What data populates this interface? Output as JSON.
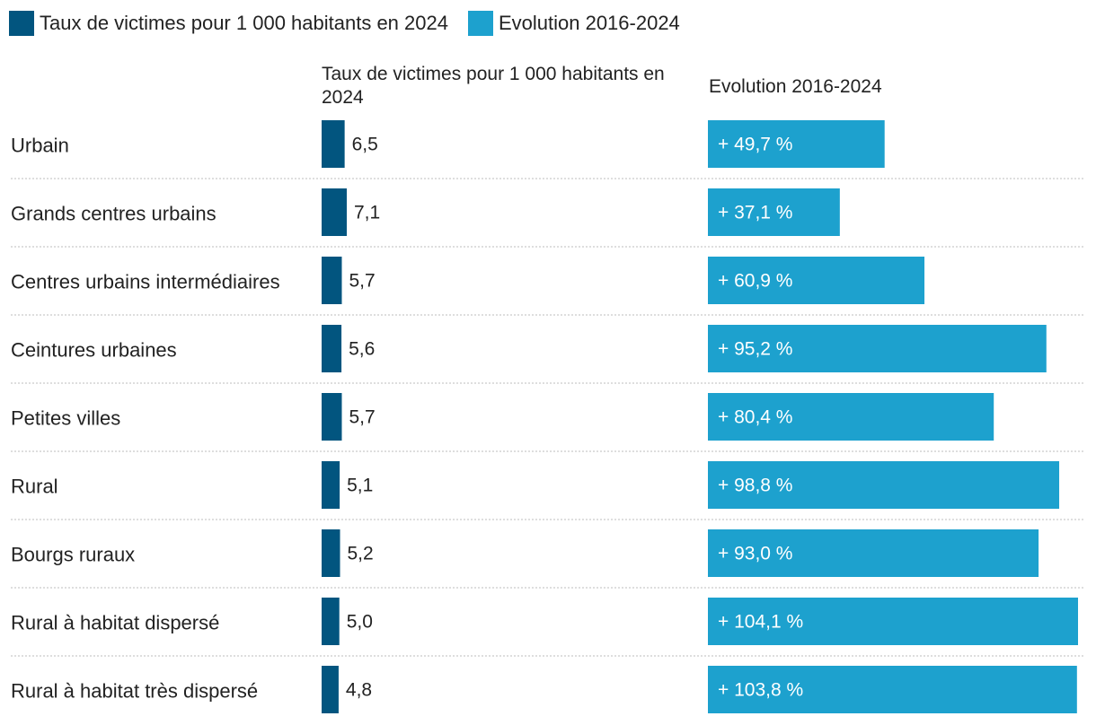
{
  "colors": {
    "rate": "#02557f",
    "evolution": "#1da1ce",
    "separator": "#bdbdbd"
  },
  "legend": [
    {
      "label": "Taux de victimes pour 1 000 habitants en 2024",
      "color": "#02557f"
    },
    {
      "label": "Evolution 2016-2024",
      "color": "#1da1ce"
    }
  ],
  "chart_data": {
    "type": "bar",
    "orientation": "horizontal",
    "categories": [
      "Urbain",
      "Grands centres urbains",
      "Centres urbains intermédiaires",
      "Ceintures urbaines",
      "Petites villes",
      "Rural",
      "Bourgs ruraux",
      "Rural à habitat dispersé",
      "Rural à habitat très dispersé"
    ],
    "series": [
      {
        "name": "Taux de victimes pour 1 000 habitants en 2024",
        "header": "Taux de victimes pour 1 000 habitants en 2024",
        "values": [
          6.5,
          7.1,
          5.7,
          5.6,
          5.7,
          5.1,
          5.2,
          5.0,
          4.8
        ],
        "labels": [
          "6,5",
          "7,1",
          "5,7",
          "5,6",
          "5,7",
          "5,1",
          "5,2",
          "5,0",
          "4,8"
        ]
      },
      {
        "name": "Evolution 2016-2024",
        "header": "Evolution 2016-2024",
        "values": [
          49.7,
          37.1,
          60.9,
          95.2,
          80.4,
          98.8,
          93.0,
          104.1,
          103.8
        ],
        "labels": [
          "+ 49,7 %",
          "+ 37,1 %",
          "+ 60,9 %",
          "+ 95,2 %",
          "+ 80,4 %",
          "+ 98,8 %",
          "+ 93,0 %",
          "+ 104,1 %",
          "+ 103,8 %"
        ]
      }
    ]
  }
}
